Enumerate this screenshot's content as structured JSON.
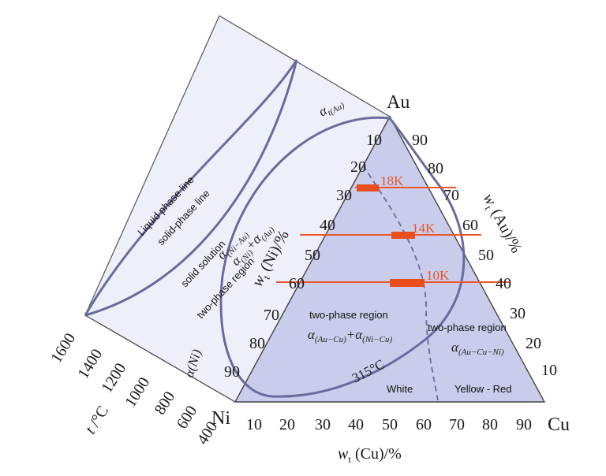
{
  "vertices": {
    "top": "Au",
    "left": "Ni",
    "right": "Cu"
  },
  "axes": {
    "bottom": {
      "title": "w",
      "subscript": "t",
      "rest": " (Cu)/%",
      "ticks": [
        "10",
        "20",
        "30",
        "40",
        "50",
        "60",
        "70",
        "80",
        "90"
      ]
    },
    "left_edge": {
      "title": "w",
      "subscript": "t",
      "rest": " (Ni)/%",
      "ticks": [
        "10",
        "20",
        "30",
        "40",
        "50",
        "60",
        "70",
        "80",
        "90"
      ]
    },
    "right_edge": {
      "title": "w",
      "subscript": "t",
      "rest": " (Au)/%",
      "ticks": [
        "90",
        "80",
        "70",
        "60",
        "50",
        "40",
        "30",
        "20",
        "10"
      ]
    },
    "temperature": {
      "title": "t",
      "rest": " /°C",
      "ticks": [
        "1600",
        "1400",
        "1200",
        "1000",
        "800",
        "600",
        "400"
      ]
    }
  },
  "labels": {
    "liquid_line": "Liquid phase line",
    "solid_line": "solid-phase line",
    "solid_solution": "solid solution",
    "two_phase_side": "two-phase region",
    "alpha_au": "α",
    "alpha_au_sub": "t(Au)",
    "alpha_ni": "α(Ni)",
    "alpha_ni_au": "α",
    "alpha_ni_au_sub": "(Ni−Au)",
    "alpha_pair": "α",
    "alpha_pair_sub1": "(Ni)",
    "alpha_pair_plus": "+α",
    "alpha_pair_sub2": "(Au)",
    "two_phase_center": "two-phase region",
    "alpha_aucu": "α",
    "alpha_aucu_sub": "(Au−Cu)",
    "alpha_nicu_plus": "+α",
    "alpha_nicu_sub": "(Ni−Cu)",
    "two_phase_right": "two-phase region",
    "alpha_aucuni": "α",
    "alpha_aucuni_sub": "(Au−Cu−Ni)",
    "temp_315": "315°C",
    "white": "White",
    "yellow_red": "Yellow - Red"
  },
  "isolines": [
    {
      "label": "18K"
    },
    {
      "label": "14K"
    },
    {
      "label": "10K"
    }
  ],
  "colors": {
    "triangle_fill": "#c9cdeb",
    "side_fill": "#eef0f9",
    "curve": "#6a6a9e",
    "iso": "#e8562a",
    "iso_bar": "#ea4e1e"
  }
}
